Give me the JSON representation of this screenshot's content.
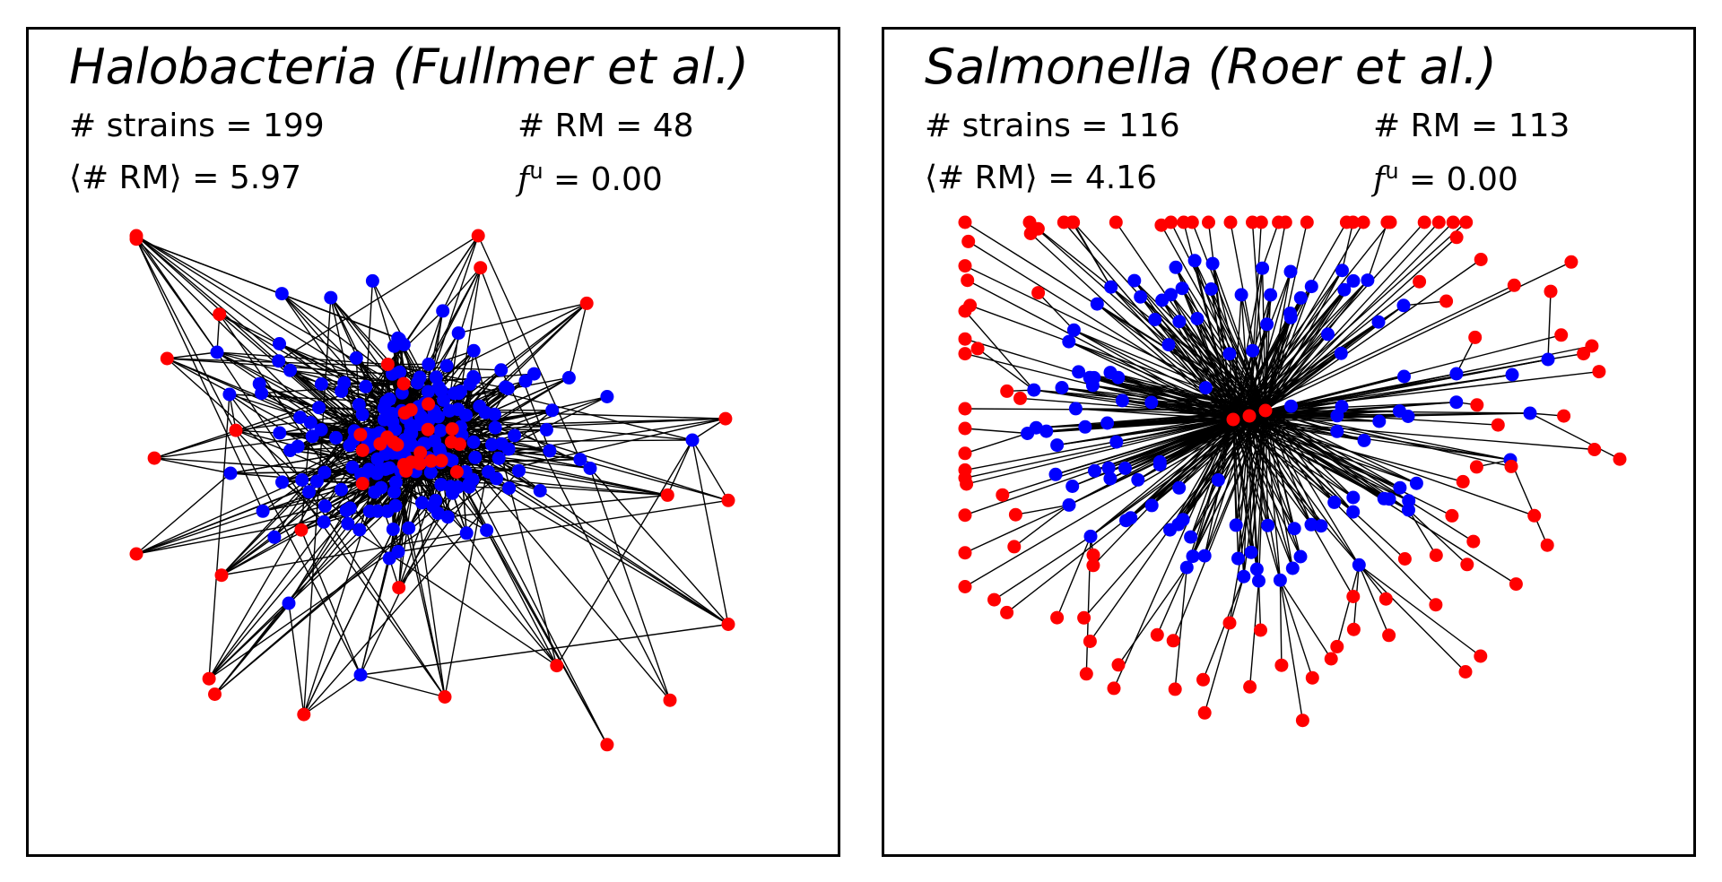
{
  "panels": [
    {
      "title": "Halobacteria (Fullmer et al.)",
      "strains": "# strains = 199",
      "rm_count": "# RM = 48",
      "mean_rm": "⟨# RM⟩ = 5.97",
      "fu_symbol": "f",
      "fu_sup": "u",
      "fu_value": " = 0.00",
      "network": {
        "strain_nodes": 199,
        "rm_nodes": 48,
        "layout": "dense-core"
      }
    },
    {
      "title": "Salmonella (Roer et al.)",
      "strains": "# strains = 116",
      "rm_count": "# RM = 113",
      "mean_rm": "⟨# RM⟩ = 4.16",
      "fu_symbol": "f",
      "fu_sup": "u",
      "fu_value": " = 0.00",
      "network": {
        "strain_nodes": 116,
        "rm_nodes": 113,
        "layout": "hub-and-spoke"
      }
    }
  ],
  "colors": {
    "strain_node": "#0000ff",
    "rm_node": "#ff0000",
    "edge": "#000000"
  }
}
